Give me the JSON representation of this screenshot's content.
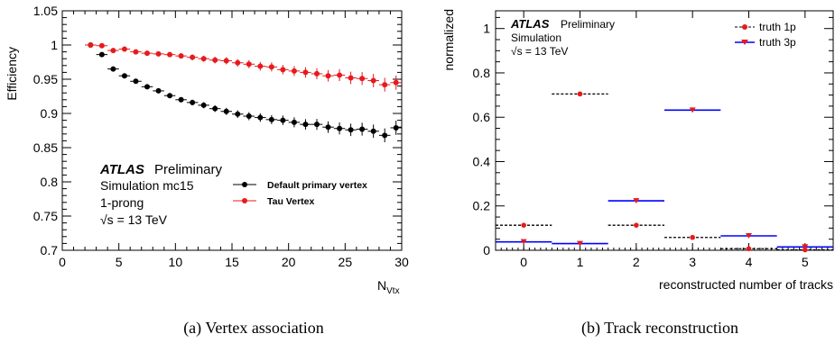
{
  "captions": {
    "left": "(a)  Vertex association",
    "right": "(b)  Track reconstruction"
  },
  "chart_data": [
    {
      "type": "scatter",
      "xlabel_main": "N",
      "xlabel_sub": "Vtx",
      "ylabel": "Efficiency",
      "xlim": [
        0,
        30
      ],
      "ylim": [
        0.7,
        1.05
      ],
      "xticks": [
        "0",
        "5",
        "10",
        "15",
        "20",
        "25",
        "30"
      ],
      "yticks": [
        "0.7",
        "0.75",
        "0.8",
        "0.85",
        "0.9",
        "0.95",
        "1",
        "1.05"
      ],
      "atlas": {
        "brand": "ATLAS",
        "tag": "Preliminary",
        "lines": [
          "Simulation mc15",
          "1-prong",
          "√s = 13 TeV"
        ]
      },
      "legend": [
        "Default primary vertex",
        "Tau Vertex"
      ],
      "series": [
        {
          "name": "Default primary vertex",
          "color": "#000000",
          "x": [
            2.5,
            3.5,
            4.5,
            5.5,
            6.5,
            7.5,
            8.5,
            9.5,
            10.5,
            11.5,
            12.5,
            13.5,
            14.5,
            15.5,
            16.5,
            17.5,
            18.5,
            19.5,
            20.5,
            21.5,
            22.5,
            23.5,
            24.5,
            25.5,
            26.5,
            27.5,
            28.5,
            29.5
          ],
          "y": [
            1.0,
            0.986,
            0.965,
            0.955,
            0.947,
            0.939,
            0.933,
            0.926,
            0.92,
            0.916,
            0.912,
            0.907,
            0.903,
            0.899,
            0.896,
            0.894,
            0.891,
            0.89,
            0.887,
            0.884,
            0.884,
            0.88,
            0.878,
            0.876,
            0.877,
            0.874,
            0.868,
            0.879
          ]
        },
        {
          "name": "Tau Vertex",
          "color": "#e8191c",
          "x": [
            2.5,
            3.5,
            4.5,
            5.5,
            6.5,
            7.5,
            8.5,
            9.5,
            10.5,
            11.5,
            12.5,
            13.5,
            14.5,
            15.5,
            16.5,
            17.5,
            18.5,
            19.5,
            20.5,
            21.5,
            22.5,
            23.5,
            24.5,
            25.5,
            26.5,
            27.5,
            28.5,
            29.5
          ],
          "y": [
            1.0,
            0.999,
            0.992,
            0.994,
            0.99,
            0.988,
            0.987,
            0.986,
            0.984,
            0.982,
            0.98,
            0.978,
            0.977,
            0.974,
            0.972,
            0.969,
            0.968,
            0.964,
            0.962,
            0.96,
            0.958,
            0.955,
            0.956,
            0.952,
            0.951,
            0.948,
            0.942,
            0.945
          ]
        }
      ]
    },
    {
      "type": "bar",
      "xlabel": "reconstructed number of tracks",
      "ylabel": "normalized",
      "xlim": [
        -0.5,
        5.5
      ],
      "ylim": [
        0,
        1.08
      ],
      "xticks": [
        "0",
        "1",
        "2",
        "3",
        "4",
        "5"
      ],
      "yticks": [
        "0",
        "0.2",
        "0.4",
        "0.6",
        "0.8",
        "1"
      ],
      "atlas": {
        "brand": "ATLAS",
        "tag": "Preliminary",
        "lines": [
          "Simulation",
          "√s = 13 TeV"
        ]
      },
      "legend": [
        "truth 1p",
        "truth 3p"
      ],
      "categories": [
        0,
        1,
        2,
        3,
        4,
        5
      ],
      "series": [
        {
          "name": "truth 1p",
          "color": "#e8191c",
          "line": "#000000",
          "dashed": true,
          "marker": "circle",
          "values": [
            0.113,
            0.705,
            0.113,
            0.058,
            0.007,
            0.002
          ]
        },
        {
          "name": "truth 3p",
          "color": "#e8191c",
          "line": "#0000ff",
          "dashed": false,
          "marker": "triangle",
          "values": [
            0.038,
            0.03,
            0.223,
            0.632,
            0.065,
            0.015
          ]
        }
      ]
    }
  ]
}
